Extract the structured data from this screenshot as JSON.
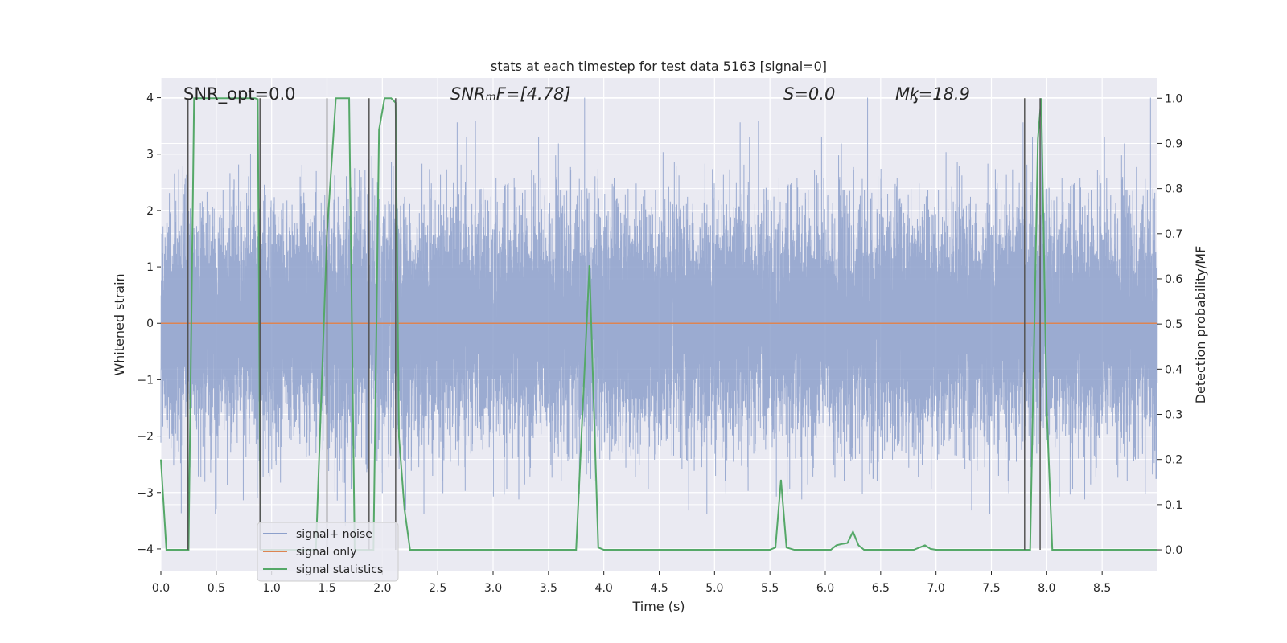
{
  "chart_data": {
    "type": "line",
    "title": "stats at each timestep for test data 5163 [signal=0]",
    "xlabel": "Time (s)",
    "ylabel": "Whitened strain",
    "y2label": "Detection probability/MF",
    "xlim": [
      0,
      9
    ],
    "ylim": [
      -4.4,
      4.35
    ],
    "y2lim": [
      -0.048,
      1.045
    ],
    "xticks": [
      0.0,
      0.5,
      1.0,
      1.5,
      2.0,
      2.5,
      3.0,
      3.5,
      4.0,
      4.5,
      5.0,
      5.5,
      6.0,
      6.5,
      7.0,
      7.5,
      8.0,
      8.5
    ],
    "xtick_labels": [
      "0.0",
      "0.5",
      "1.0",
      "1.5",
      "2.0",
      "2.5",
      "3.0",
      "3.5",
      "4.0",
      "4.5",
      "5.0",
      "5.5",
      "6.0",
      "6.5",
      "7.0",
      "7.5",
      "8.0",
      "8.5"
    ],
    "yticks": [
      -4,
      -3,
      -2,
      -1,
      0,
      1,
      2,
      3,
      4
    ],
    "ytick_labels": [
      "−4",
      "−3",
      "−2",
      "−1",
      "0",
      "1",
      "2",
      "3",
      "4"
    ],
    "y2ticks": [
      0.0,
      0.1,
      0.2,
      0.3,
      0.4,
      0.5,
      0.6,
      0.7,
      0.8,
      0.9,
      1.0
    ],
    "y2tick_labels": [
      "0.0",
      "0.1",
      "0.2",
      "0.3",
      "0.4",
      "0.5",
      "0.6",
      "0.7",
      "0.8",
      "0.9",
      "1.0"
    ],
    "annotations": [
      {
        "text": "SNR_opt=0.0",
        "x": 0.2
      },
      {
        "text": "SNRₘF=[4.78]",
        "x": 2.6
      },
      {
        "text": "S=0.0",
        "x": 5.6
      },
      {
        "text": "Mᶄ=18.9",
        "x": 6.6
      }
    ],
    "legend": {
      "position": "lower-left",
      "entries": [
        {
          "label": "signal+ noise",
          "color": "#8da0cb"
        },
        {
          "label": "signal only",
          "color": "#dd8452"
        },
        {
          "label": "signal statistics",
          "color": "#55a868"
        }
      ]
    },
    "noise": {
      "color": "#8da0cb",
      "sample_rate_hz": 2048,
      "duration_s": 9.0,
      "sigma": 1.0,
      "bound_approx": [
        -3.6,
        4.0
      ]
    },
    "signal_only": {
      "color": "#dd8452",
      "value": 0.0
    },
    "statistics": {
      "color": "#55a868",
      "axis": "right",
      "x": [
        0.0,
        0.05,
        0.1,
        0.15,
        0.2,
        0.25,
        0.3,
        0.85,
        0.875,
        0.9,
        0.95,
        1.0,
        1.25,
        1.4,
        1.5,
        1.58,
        1.7,
        1.75,
        1.8,
        1.88,
        1.92,
        1.97,
        2.02,
        2.08,
        2.12,
        2.15,
        2.2,
        2.25,
        3.5,
        3.7,
        3.75,
        3.87,
        3.95,
        4.0,
        4.1,
        5.5,
        5.55,
        5.6,
        5.65,
        5.72,
        5.8,
        5.95,
        6.05,
        6.1,
        6.15,
        6.2,
        6.25,
        6.3,
        6.35,
        6.8,
        6.9,
        6.95,
        7.0,
        7.8,
        7.85,
        7.92,
        7.95,
        8.0,
        8.05,
        9.0
      ],
      "values": [
        0.2,
        0.0,
        0.0,
        0.0,
        0.0,
        0.0,
        1.0,
        1.0,
        0.998,
        0.0,
        0.0,
        0.0,
        0.0,
        0.0,
        0.7,
        1.0,
        1.0,
        0.0,
        0.0,
        0.0,
        0.0,
        0.93,
        1.0,
        1.0,
        0.99,
        0.25,
        0.09,
        0.0,
        0.0,
        0.0,
        0.0,
        0.63,
        0.005,
        0.0,
        0.0,
        0.0,
        0.005,
        0.155,
        0.005,
        0.0,
        0.0,
        0.0,
        0.0,
        0.01,
        0.013,
        0.015,
        0.04,
        0.01,
        0.0,
        0.0,
        0.01,
        0.002,
        0.0,
        0.0,
        0.0,
        0.91,
        1.0,
        0.31,
        0.0,
        0.0
      ]
    },
    "vlines": [
      {
        "x": 0.245,
        "color": "#555555"
      },
      {
        "x": 0.895,
        "color": "#555555"
      },
      {
        "x": 1.5,
        "color": "#555555"
      },
      {
        "x": 1.88,
        "color": "#555555"
      },
      {
        "x": 2.12,
        "color": "#555555"
      },
      {
        "x": 7.8,
        "color": "#555555"
      },
      {
        "x": 7.94,
        "color": "#555555"
      }
    ],
    "colors": {
      "plot_background": "#eaeaf2",
      "grid": "#ffffff",
      "text": "#262626"
    }
  }
}
